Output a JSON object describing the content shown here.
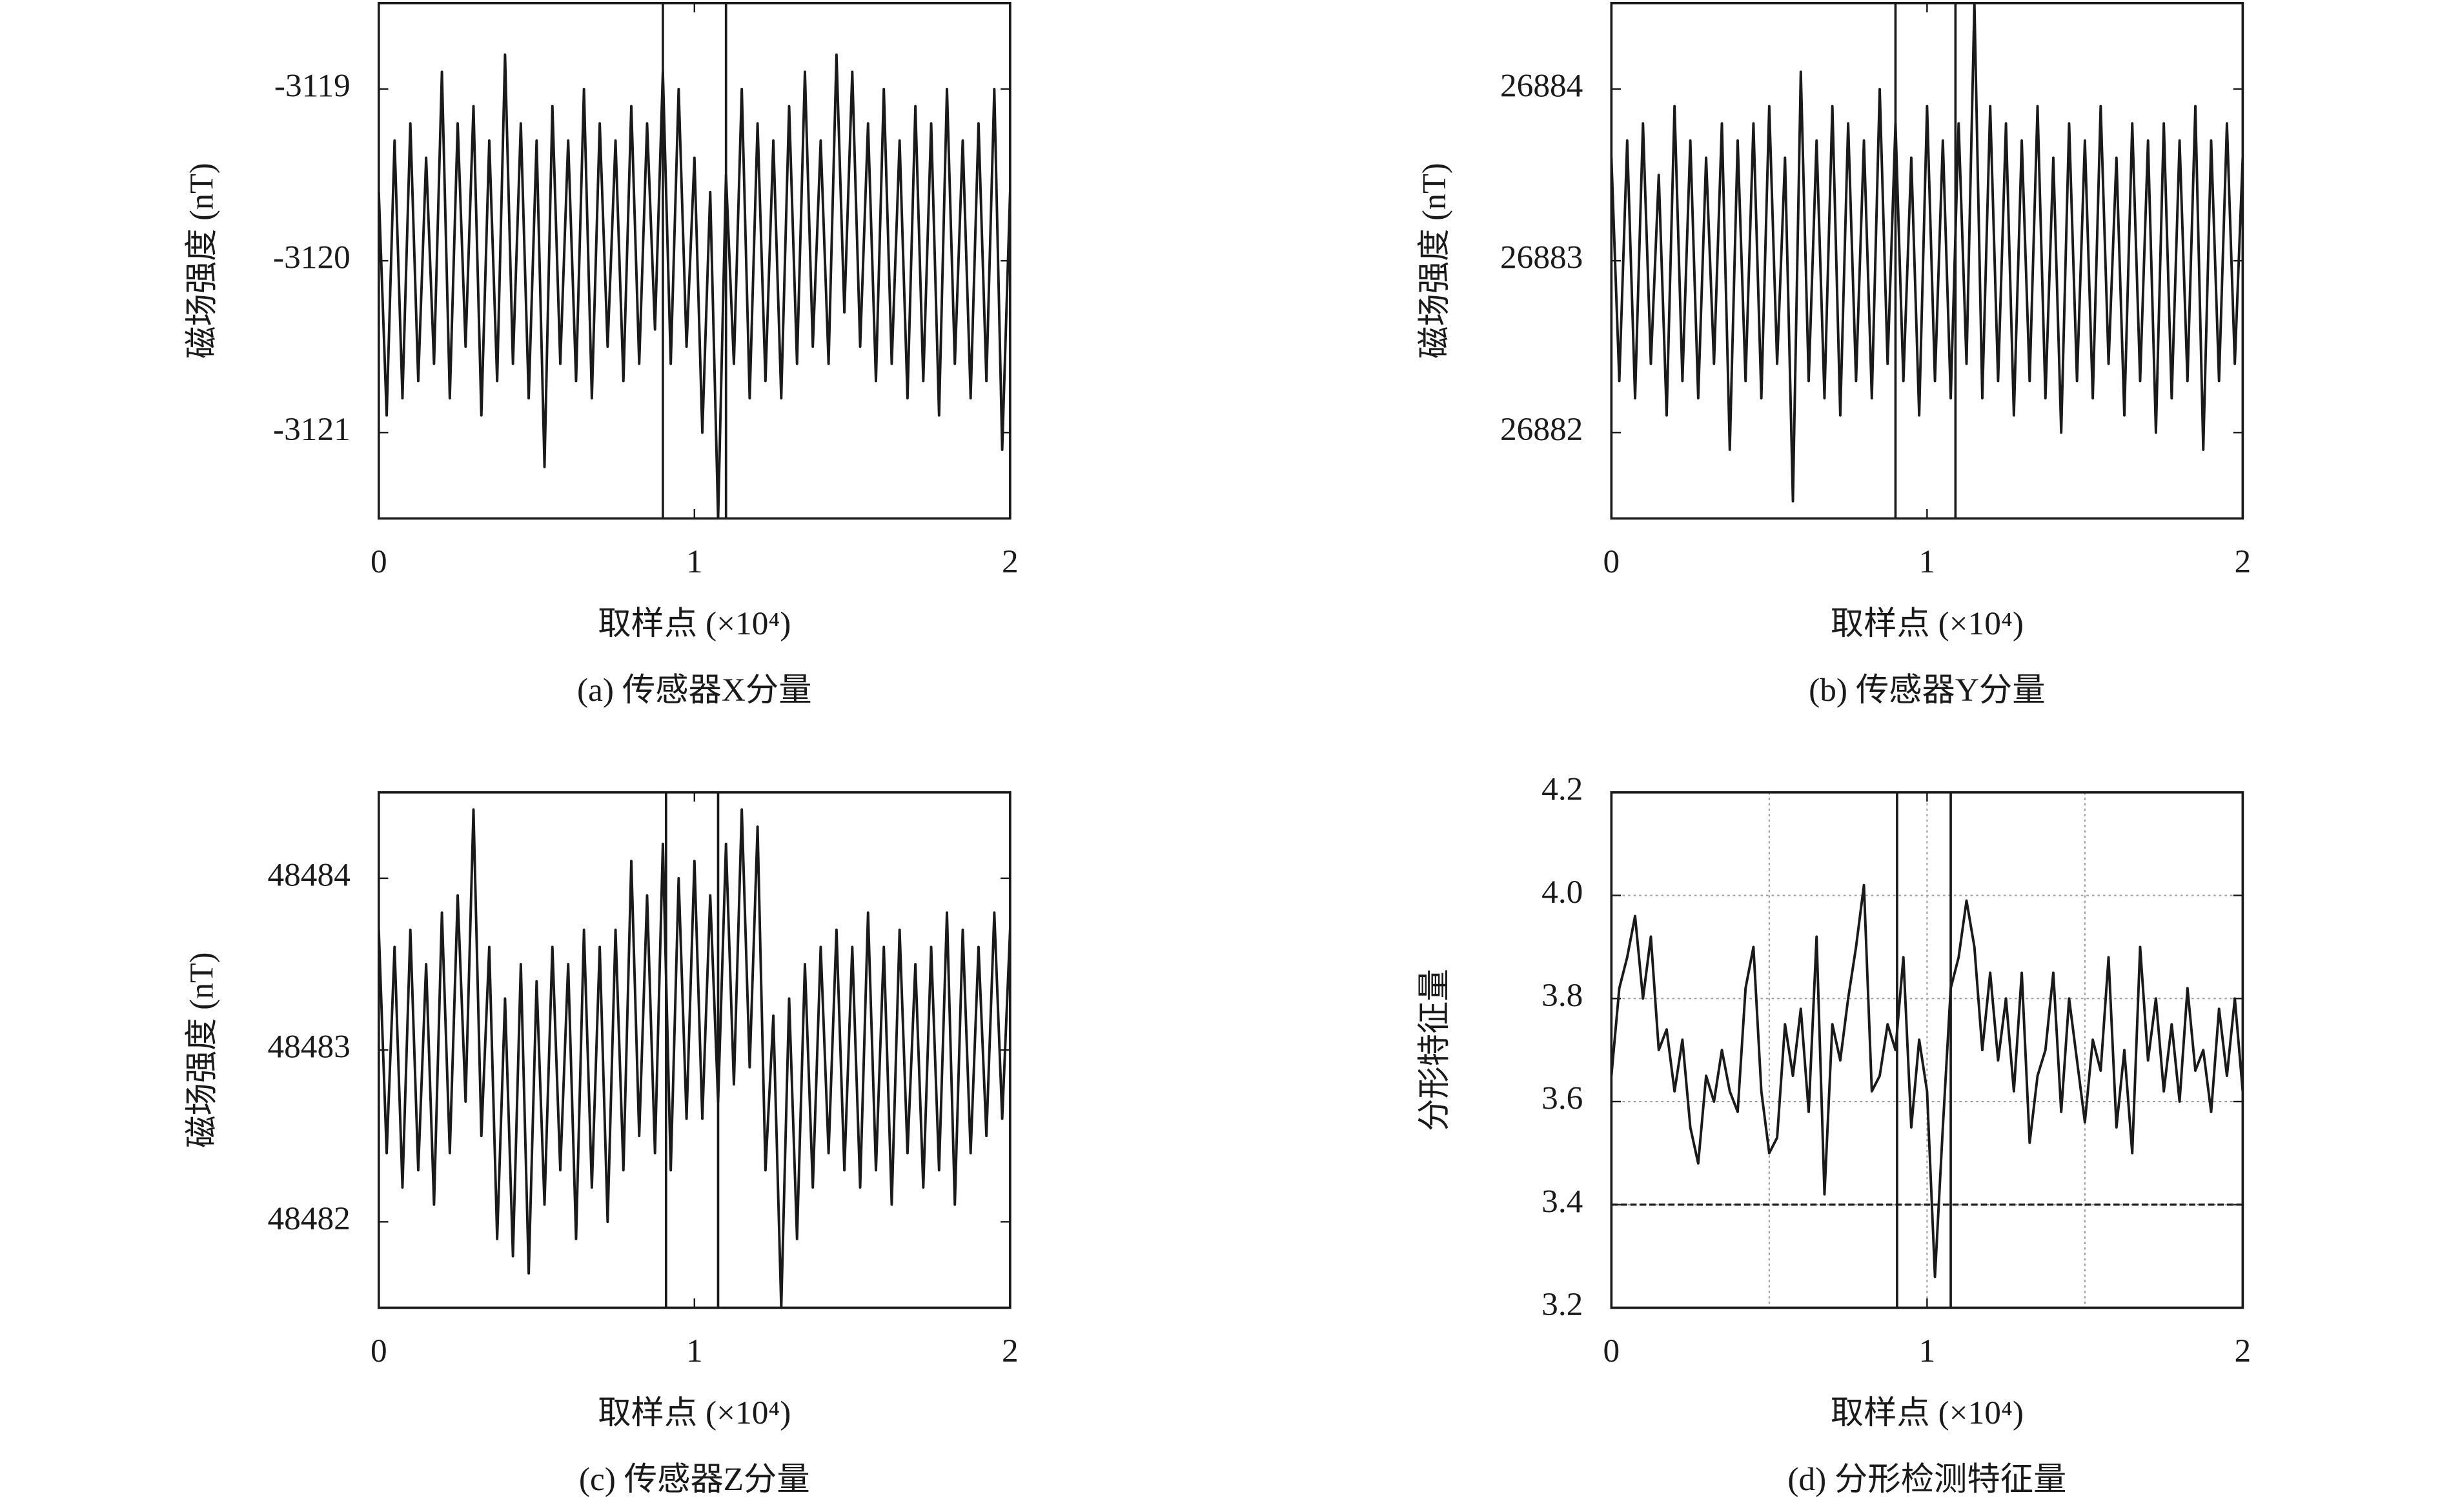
{
  "chart_data": [
    {
      "type": "line",
      "title": "(a) 传感器X分量",
      "xlabel": "取样点 (×10⁴)",
      "ylabel": "磁场强度 (nT)",
      "color": "#1a1a1a",
      "xlim": [
        0,
        2
      ],
      "xticks": [
        0,
        1,
        2
      ],
      "ylim": [
        -3121.5,
        -3118.5
      ],
      "yticks": [
        -3121,
        -3120,
        -3119
      ],
      "windows": [
        0.9,
        1.1
      ],
      "x": [
        0,
        0.025,
        0.05,
        0.075,
        0.1,
        0.125,
        0.15,
        0.175,
        0.2,
        0.225,
        0.25,
        0.275,
        0.3,
        0.325,
        0.35,
        0.375,
        0.4,
        0.425,
        0.45,
        0.475,
        0.5,
        0.525,
        0.55,
        0.575,
        0.6,
        0.625,
        0.65,
        0.675,
        0.7,
        0.725,
        0.75,
        0.775,
        0.8,
        0.825,
        0.85,
        0.875,
        0.9,
        0.925,
        0.95,
        0.975,
        1,
        1.025,
        1.05,
        1.075,
        1.1,
        1.125,
        1.15,
        1.175,
        1.2,
        1.225,
        1.25,
        1.275,
        1.3,
        1.325,
        1.35,
        1.375,
        1.4,
        1.425,
        1.45,
        1.475,
        1.5,
        1.525,
        1.55,
        1.575,
        1.6,
        1.625,
        1.65,
        1.675,
        1.7,
        1.725,
        1.75,
        1.775,
        1.8,
        1.825,
        1.85,
        1.875,
        1.9,
        1.925,
        1.95,
        1.975,
        2
      ],
      "values": [
        -3119.6,
        -3120.9,
        -3119.3,
        -3120.8,
        -3119.2,
        -3120.7,
        -3119.4,
        -3120.6,
        -3118.9,
        -3120.8,
        -3119.2,
        -3120.5,
        -3119.1,
        -3120.9,
        -3119.3,
        -3120.7,
        -3118.8,
        -3120.6,
        -3119.2,
        -3120.8,
        -3119.3,
        -3121.2,
        -3119.1,
        -3120.6,
        -3119.3,
        -3120.7,
        -3119.0,
        -3120.8,
        -3119.2,
        -3120.5,
        -3119.3,
        -3120.7,
        -3119.1,
        -3120.6,
        -3119.2,
        -3120.4,
        -3118.9,
        -3120.6,
        -3119.0,
        -3120.5,
        -3119.4,
        -3121.0,
        -3119.6,
        -3121.5,
        -3119.5,
        -3120.6,
        -3119.0,
        -3120.8,
        -3119.2,
        -3120.7,
        -3119.3,
        -3120.8,
        -3119.1,
        -3120.6,
        -3118.9,
        -3120.5,
        -3119.3,
        -3120.6,
        -3118.8,
        -3120.3,
        -3118.9,
        -3120.5,
        -3119.2,
        -3120.7,
        -3119.0,
        -3120.6,
        -3119.3,
        -3120.8,
        -3119.1,
        -3120.7,
        -3119.2,
        -3120.9,
        -3119.0,
        -3120.6,
        -3119.3,
        -3120.8,
        -3119.2,
        -3120.7,
        -3119.0,
        -3121.1,
        -3119.6
      ]
    },
    {
      "type": "line",
      "title": "(b) 传感器Y分量",
      "xlabel": "取样点 (×10⁴)",
      "ylabel": "磁场强度 (nT)",
      "color": "#1a1a1a",
      "xlim": [
        0,
        2
      ],
      "xticks": [
        0,
        1,
        2
      ],
      "ylim": [
        26881.5,
        26884.5
      ],
      "yticks": [
        26882,
        26883,
        26884
      ],
      "windows": [
        0.9,
        1.09
      ],
      "x": [
        0,
        0.025,
        0.05,
        0.075,
        0.1,
        0.125,
        0.15,
        0.175,
        0.2,
        0.225,
        0.25,
        0.275,
        0.3,
        0.325,
        0.35,
        0.375,
        0.4,
        0.425,
        0.45,
        0.475,
        0.5,
        0.525,
        0.55,
        0.575,
        0.6,
        0.625,
        0.65,
        0.675,
        0.7,
        0.725,
        0.75,
        0.775,
        0.8,
        0.825,
        0.85,
        0.875,
        0.9,
        0.925,
        0.95,
        0.975,
        1,
        1.025,
        1.05,
        1.075,
        1.1,
        1.125,
        1.15,
        1.175,
        1.2,
        1.225,
        1.25,
        1.275,
        1.3,
        1.325,
        1.35,
        1.375,
        1.4,
        1.425,
        1.45,
        1.475,
        1.5,
        1.525,
        1.55,
        1.575,
        1.6,
        1.625,
        1.65,
        1.675,
        1.7,
        1.725,
        1.75,
        1.775,
        1.8,
        1.825,
        1.85,
        1.875,
        1.9,
        1.925,
        1.95,
        1.975,
        2
      ],
      "values": [
        26883.6,
        26882.3,
        26883.7,
        26882.2,
        26883.8,
        26882.4,
        26883.5,
        26882.1,
        26883.9,
        26882.3,
        26883.7,
        26882.2,
        26883.6,
        26882.4,
        26883.8,
        26881.9,
        26883.7,
        26882.3,
        26883.8,
        26882.2,
        26883.9,
        26882.4,
        26883.6,
        26881.6,
        26884.1,
        26882.3,
        26883.7,
        26882.2,
        26883.9,
        26882.1,
        26883.8,
        26882.3,
        26883.7,
        26882.2,
        26884.0,
        26882.4,
        26883.8,
        26882.3,
        26883.6,
        26882.1,
        26883.9,
        26882.3,
        26883.7,
        26882.2,
        26883.8,
        26882.4,
        26884.5,
        26882.2,
        26883.9,
        26882.3,
        26883.8,
        26882.1,
        26883.7,
        26882.3,
        26883.9,
        26882.2,
        26883.6,
        26882.0,
        26883.8,
        26882.3,
        26883.7,
        26882.2,
        26883.9,
        26882.4,
        26883.6,
        26882.1,
        26883.8,
        26882.3,
        26883.7,
        26882.0,
        26883.8,
        26882.2,
        26883.7,
        26882.3,
        26883.9,
        26881.9,
        26883.7,
        26882.3,
        26883.8,
        26882.4,
        26883.6
      ]
    },
    {
      "type": "line",
      "title": "(c) 传感器Z分量",
      "xlabel": "取样点 (×10⁴)",
      "ylabel": "磁场强度 (nT)",
      "color": "#1a1a1a",
      "xlim": [
        0,
        2
      ],
      "xticks": [
        0,
        1,
        2
      ],
      "ylim": [
        48481.5,
        48484.5
      ],
      "yticks": [
        48482,
        48483,
        48484
      ],
      "windows": [
        0.91,
        1.075
      ],
      "x": [
        0,
        0.025,
        0.05,
        0.075,
        0.1,
        0.125,
        0.15,
        0.175,
        0.2,
        0.225,
        0.25,
        0.275,
        0.3,
        0.325,
        0.35,
        0.375,
        0.4,
        0.425,
        0.45,
        0.475,
        0.5,
        0.525,
        0.55,
        0.575,
        0.6,
        0.625,
        0.65,
        0.675,
        0.7,
        0.725,
        0.75,
        0.775,
        0.8,
        0.825,
        0.85,
        0.875,
        0.9,
        0.925,
        0.95,
        0.975,
        1,
        1.025,
        1.05,
        1.075,
        1.1,
        1.125,
        1.15,
        1.175,
        1.2,
        1.225,
        1.25,
        1.275,
        1.3,
        1.325,
        1.35,
        1.375,
        1.4,
        1.425,
        1.45,
        1.475,
        1.5,
        1.525,
        1.55,
        1.575,
        1.6,
        1.625,
        1.65,
        1.675,
        1.7,
        1.725,
        1.75,
        1.775,
        1.8,
        1.825,
        1.85,
        1.875,
        1.9,
        1.925,
        1.95,
        1.975,
        2
      ],
      "values": [
        48483.7,
        48482.4,
        48483.6,
        48482.2,
        48483.7,
        48482.3,
        48483.5,
        48482.1,
        48483.8,
        48482.4,
        48483.9,
        48482.7,
        48484.4,
        48482.5,
        48483.6,
        48481.9,
        48483.3,
        48481.8,
        48483.5,
        48481.7,
        48483.4,
        48482.1,
        48483.6,
        48482.3,
        48483.5,
        48481.9,
        48483.7,
        48482.2,
        48483.6,
        48482.0,
        48483.7,
        48482.3,
        48484.1,
        48482.5,
        48483.9,
        48482.4,
        48484.2,
        48482.3,
        48484.0,
        48482.6,
        48484.1,
        48482.6,
        48483.9,
        48482.7,
        48484.2,
        48482.8,
        48484.4,
        48482.9,
        48484.3,
        48482.3,
        48483.2,
        48481.5,
        48483.3,
        48481.9,
        48483.5,
        48482.2,
        48483.6,
        48482.4,
        48483.7,
        48482.3,
        48483.6,
        48482.2,
        48483.8,
        48482.3,
        48483.6,
        48482.1,
        48483.7,
        48482.4,
        48483.5,
        48482.2,
        48483.6,
        48482.3,
        48483.8,
        48482.1,
        48483.7,
        48482.4,
        48483.6,
        48482.5,
        48483.8,
        48482.6,
        48483.7
      ]
    },
    {
      "type": "line",
      "title": "(d) 分形检测特征量",
      "xlabel": "取样点 (×10⁴)",
      "ylabel": "分形特征量",
      "color": "#1a1a1a",
      "grid": true,
      "threshold": 3.4,
      "xlim": [
        0,
        2
      ],
      "xticks": [
        0,
        1,
        2
      ],
      "gridx": [
        0.5,
        1,
        1.5
      ],
      "ylim": [
        3.2,
        4.2
      ],
      "yticks": [
        3.2,
        3.4,
        3.6,
        3.8,
        {
          "value": 4.0,
          "label": "4.0"
        },
        4.2
      ],
      "windows": [
        0.905,
        1.075
      ],
      "x": [
        0,
        0.025,
        0.05,
        0.075,
        0.1,
        0.125,
        0.15,
        0.175,
        0.2,
        0.225,
        0.25,
        0.275,
        0.3,
        0.325,
        0.35,
        0.375,
        0.4,
        0.425,
        0.45,
        0.475,
        0.5,
        0.525,
        0.55,
        0.575,
        0.6,
        0.625,
        0.65,
        0.675,
        0.7,
        0.725,
        0.75,
        0.775,
        0.8,
        0.825,
        0.85,
        0.875,
        0.9,
        0.925,
        0.95,
        0.975,
        1,
        1.025,
        1.05,
        1.075,
        1.1,
        1.125,
        1.15,
        1.175,
        1.2,
        1.225,
        1.25,
        1.275,
        1.3,
        1.325,
        1.35,
        1.375,
        1.4,
        1.425,
        1.45,
        1.475,
        1.5,
        1.525,
        1.55,
        1.575,
        1.6,
        1.625,
        1.65,
        1.675,
        1.7,
        1.725,
        1.75,
        1.775,
        1.8,
        1.825,
        1.85,
        1.875,
        1.9,
        1.925,
        1.95,
        1.975,
        2
      ],
      "values": [
        3.65,
        3.82,
        3.88,
        3.96,
        3.8,
        3.92,
        3.7,
        3.74,
        3.62,
        3.72,
        3.55,
        3.48,
        3.65,
        3.6,
        3.7,
        3.62,
        3.58,
        3.82,
        3.9,
        3.62,
        3.5,
        3.53,
        3.75,
        3.65,
        3.78,
        3.58,
        3.92,
        3.42,
        3.75,
        3.68,
        3.8,
        3.9,
        4.02,
        3.62,
        3.65,
        3.75,
        3.7,
        3.88,
        3.55,
        3.72,
        3.62,
        3.26,
        3.55,
        3.82,
        3.88,
        3.99,
        3.9,
        3.7,
        3.85,
        3.68,
        3.8,
        3.62,
        3.85,
        3.52,
        3.65,
        3.7,
        3.85,
        3.58,
        3.8,
        3.68,
        3.56,
        3.72,
        3.66,
        3.88,
        3.55,
        3.7,
        3.5,
        3.9,
        3.68,
        3.8,
        3.62,
        3.75,
        3.6,
        3.82,
        3.66,
        3.7,
        3.58,
        3.78,
        3.65,
        3.8,
        3.62
      ]
    }
  ]
}
